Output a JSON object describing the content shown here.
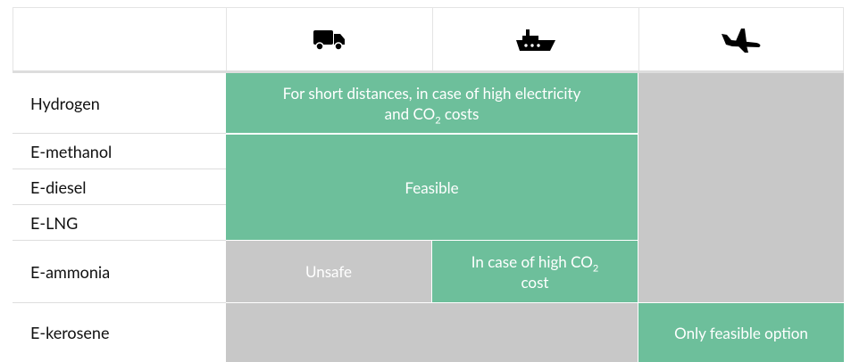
{
  "rows": [
    "Hydrogen",
    "E-methanol",
    "E-diesel",
    "E-LNG",
    "E-ammonia",
    "E-kerosene"
  ],
  "cells": {
    "hydrogen_road_sea": [
      "For short distances, in case of high electricity and CO",
      "2",
      " costs"
    ],
    "feasible": [
      "Feasible"
    ],
    "unsafe": [
      "Unsafe"
    ],
    "ammonia_sea": [
      "In case of high CO",
      "2",
      " cost"
    ],
    "kerosene_air": [
      "Only feasible option"
    ]
  }
}
